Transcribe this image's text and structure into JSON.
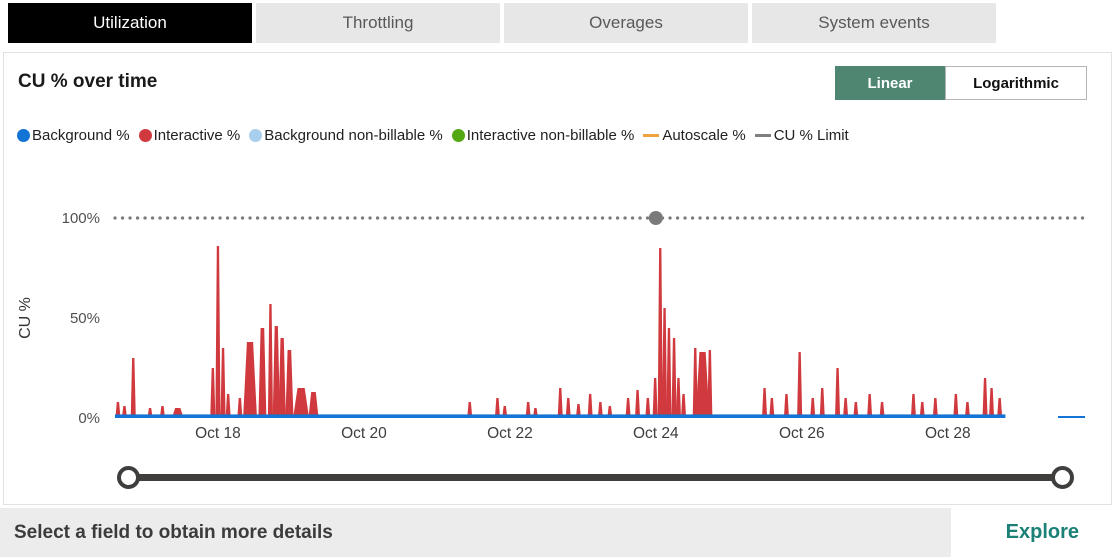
{
  "tabs": [
    {
      "label": "Utilization",
      "active": true
    },
    {
      "label": "Throttling",
      "active": false
    },
    {
      "label": "Overages",
      "active": false
    },
    {
      "label": "System events",
      "active": false
    }
  ],
  "card": {
    "title": "CU % over time",
    "scale_toggle": {
      "options": [
        "Linear",
        "Logarithmic"
      ],
      "selected": "Linear",
      "selected_bg": "#4e8672"
    },
    "legend": [
      {
        "label": "Background %",
        "marker": "dot",
        "color": "#1374d6"
      },
      {
        "label": "Interactive %",
        "marker": "dot",
        "color": "#d03a3e"
      },
      {
        "label": "Background non-billable %",
        "marker": "dot",
        "color": "#a9cfee"
      },
      {
        "label": "Interactive non-billable %",
        "marker": "dot",
        "color": "#53a813"
      },
      {
        "label": "Autoscale %",
        "marker": "dash",
        "color": "#f0a23c"
      },
      {
        "label": "CU % Limit",
        "marker": "dash",
        "color": "#7f7f7f"
      }
    ]
  },
  "chart_data": {
    "type": "area",
    "title": "CU % over time",
    "ylabel": "CU %",
    "ylim": [
      0,
      100
    ],
    "grid": false,
    "x_domain": {
      "min": 16.59,
      "max": 29.88,
      "unit": "day-of-october"
    },
    "y_ticks": [
      {
        "label": "100%",
        "value": 100
      },
      {
        "label": "50%",
        "value": 50
      },
      {
        "label": "0%",
        "value": 0
      }
    ],
    "x_ticks": [
      {
        "day": 18,
        "label": "Oct 18"
      },
      {
        "day": 20,
        "label": "Oct 20"
      },
      {
        "day": 22,
        "label": "Oct 22"
      },
      {
        "day": 24,
        "label": "Oct 24"
      },
      {
        "day": 26,
        "label": "Oct 26"
      },
      {
        "day": 28,
        "label": "Oct 28"
      }
    ],
    "limit_line": {
      "value": 100,
      "marker_day": 24.0,
      "color": "#7a7a7a"
    },
    "series_colors": {
      "interactive": "#d03a3e",
      "background": "#1374d6"
    },
    "interactive_spikes": [
      [
        16.63,
        8
      ],
      [
        16.72,
        6
      ],
      [
        16.84,
        30
      ],
      [
        17.07,
        5
      ],
      [
        17.24,
        6
      ],
      [
        17.45,
        5,
        0.16
      ],
      [
        17.93,
        25
      ],
      [
        18.0,
        86
      ],
      [
        18.07,
        35
      ],
      [
        18.14,
        12
      ],
      [
        18.3,
        10
      ],
      [
        18.44,
        38,
        0.19
      ],
      [
        18.61,
        45,
        0.11
      ],
      [
        18.72,
        57
      ],
      [
        18.8,
        46,
        0.1
      ],
      [
        18.88,
        40,
        0.1
      ],
      [
        18.98,
        34,
        0.11
      ],
      [
        19.14,
        15,
        0.22
      ],
      [
        19.31,
        13,
        0.14
      ],
      [
        21.45,
        8
      ],
      [
        21.83,
        10
      ],
      [
        21.93,
        6
      ],
      [
        22.25,
        8
      ],
      [
        22.35,
        5
      ],
      [
        22.69,
        15
      ],
      [
        22.8,
        10
      ],
      [
        22.94,
        7
      ],
      [
        23.1,
        12
      ],
      [
        23.24,
        8
      ],
      [
        23.37,
        6
      ],
      [
        23.62,
        10
      ],
      [
        23.75,
        14
      ],
      [
        23.89,
        10
      ],
      [
        23.99,
        20
      ],
      [
        24.06,
        85
      ],
      [
        24.12,
        55
      ],
      [
        24.18,
        45
      ],
      [
        24.25,
        40
      ],
      [
        24.31,
        20
      ],
      [
        24.38,
        12
      ],
      [
        24.54,
        35
      ],
      [
        24.64,
        33,
        0.19
      ],
      [
        24.74,
        34
      ],
      [
        25.49,
        15
      ],
      [
        25.59,
        10
      ],
      [
        25.79,
        12
      ],
      [
        25.97,
        33
      ],
      [
        26.15,
        10
      ],
      [
        26.28,
        15
      ],
      [
        26.49,
        25
      ],
      [
        26.6,
        10
      ],
      [
        26.74,
        8
      ],
      [
        26.93,
        12
      ],
      [
        27.1,
        8
      ],
      [
        27.53,
        12
      ],
      [
        27.65,
        8
      ],
      [
        27.83,
        10
      ],
      [
        28.11,
        12
      ],
      [
        28.27,
        8
      ],
      [
        28.51,
        20
      ],
      [
        28.6,
        15
      ],
      [
        28.71,
        10
      ]
    ],
    "background_segments": [
      {
        "from": 16.59,
        "to": 28.79,
        "value": 1.8
      },
      {
        "from": 29.51,
        "to": 29.88,
        "value": 1.0
      }
    ]
  },
  "footer": {
    "hint": "Select a field to obtain more details",
    "action": "Explore",
    "action_color": "#1b8076"
  }
}
